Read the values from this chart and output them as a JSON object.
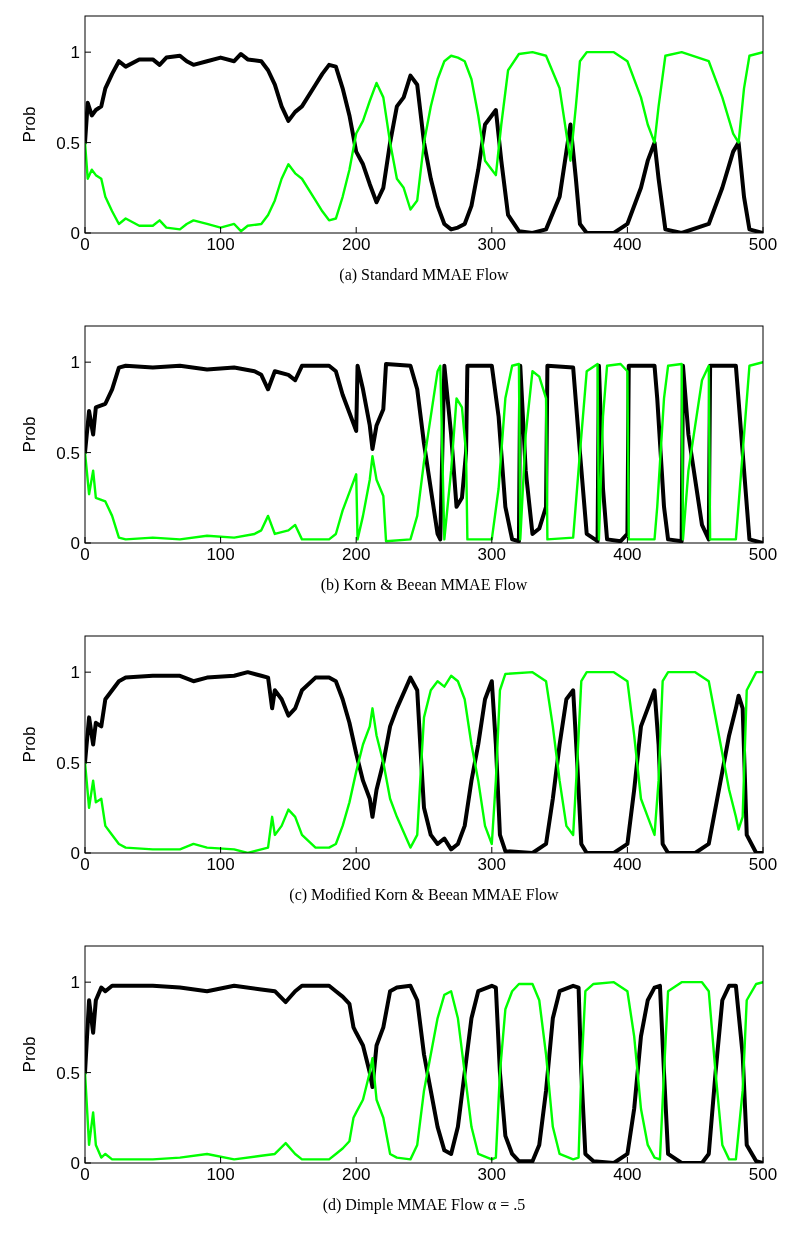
{
  "chart_data": [
    {
      "type": "line",
      "title": "(a) Standard MMAE Flow",
      "ylabel": "Prob",
      "xlim": [
        0,
        500
      ],
      "ylim": [
        0,
        1.2
      ],
      "xticks": [
        0,
        100,
        200,
        300,
        400,
        500
      ],
      "yticks": [
        0,
        0.5,
        1
      ],
      "x": [
        0,
        2,
        5,
        8,
        12,
        15,
        20,
        25,
        30,
        40,
        50,
        55,
        60,
        70,
        75,
        80,
        90,
        100,
        110,
        115,
        120,
        130,
        135,
        140,
        145,
        150,
        155,
        160,
        170,
        175,
        180,
        185,
        190,
        195,
        200,
        205,
        210,
        215,
        220,
        225,
        230,
        235,
        240,
        245,
        250,
        255,
        260,
        265,
        270,
        275,
        280,
        285,
        290,
        295,
        300,
        303,
        307,
        312,
        320,
        330,
        340,
        350,
        355,
        358,
        362,
        365,
        370,
        390,
        400,
        410,
        415,
        420,
        423,
        428,
        440,
        460,
        470,
        478,
        482,
        486,
        490,
        500
      ],
      "series": [
        {
          "color": "#000000",
          "values": [
            0.5,
            0.72,
            0.65,
            0.68,
            0.7,
            0.8,
            0.88,
            0.95,
            0.92,
            0.96,
            0.96,
            0.93,
            0.97,
            0.98,
            0.95,
            0.93,
            0.95,
            0.97,
            0.95,
            0.99,
            0.96,
            0.95,
            0.9,
            0.82,
            0.7,
            0.62,
            0.67,
            0.7,
            0.82,
            0.88,
            0.93,
            0.92,
            0.8,
            0.65,
            0.45,
            0.38,
            0.27,
            0.17,
            0.25,
            0.5,
            0.7,
            0.75,
            0.87,
            0.82,
            0.5,
            0.3,
            0.15,
            0.05,
            0.02,
            0.03,
            0.05,
            0.15,
            0.35,
            0.6,
            0.65,
            0.68,
            0.4,
            0.1,
            0.01,
            0,
            0.02,
            0.2,
            0.45,
            0.6,
            0.3,
            0.05,
            0,
            0,
            0.05,
            0.25,
            0.4,
            0.5,
            0.3,
            0.02,
            0,
            0.05,
            0.25,
            0.45,
            0.5,
            0.2,
            0.02,
            0
          ]
        },
        {
          "color": "#00ff00",
          "values": [
            0.5,
            0.3,
            0.35,
            0.32,
            0.3,
            0.2,
            0.12,
            0.05,
            0.08,
            0.04,
            0.04,
            0.07,
            0.03,
            0.02,
            0.05,
            0.07,
            0.05,
            0.03,
            0.05,
            0.01,
            0.04,
            0.05,
            0.1,
            0.18,
            0.3,
            0.38,
            0.33,
            0.3,
            0.18,
            0.12,
            0.07,
            0.08,
            0.2,
            0.35,
            0.55,
            0.62,
            0.73,
            0.83,
            0.75,
            0.5,
            0.3,
            0.25,
            0.13,
            0.18,
            0.5,
            0.7,
            0.85,
            0.95,
            0.98,
            0.97,
            0.95,
            0.85,
            0.65,
            0.4,
            0.35,
            0.32,
            0.6,
            0.9,
            0.99,
            1,
            0.98,
            0.8,
            0.55,
            0.4,
            0.7,
            0.95,
            1,
            1,
            0.95,
            0.75,
            0.6,
            0.5,
            0.7,
            0.98,
            1,
            0.95,
            0.75,
            0.55,
            0.5,
            0.8,
            0.98,
            1
          ]
        }
      ]
    },
    {
      "type": "line",
      "title": "(b) Korn & Beean MMAE Flow",
      "ylabel": "Prob",
      "xlim": [
        0,
        500
      ],
      "ylim": [
        0,
        1.2
      ],
      "xticks": [
        0,
        100,
        200,
        300,
        400,
        500
      ],
      "yticks": [
        0,
        0.5,
        1
      ],
      "x": [
        0,
        3,
        6,
        8,
        15,
        20,
        25,
        30,
        50,
        70,
        90,
        110,
        125,
        130,
        135,
        140,
        150,
        155,
        160,
        180,
        185,
        190,
        195,
        200,
        201,
        205,
        210,
        212,
        215,
        220,
        222,
        240,
        245,
        250,
        255,
        260,
        262,
        265,
        270,
        274,
        278,
        281,
        282,
        300,
        305,
        310,
        315,
        320,
        321,
        325,
        330,
        335,
        340,
        341,
        360,
        365,
        370,
        378,
        379,
        382,
        385,
        395,
        400,
        401,
        420,
        422,
        427,
        430,
        440,
        441,
        445,
        455,
        460,
        461,
        480,
        485,
        490,
        500
      ],
      "series": [
        {
          "color": "#000000",
          "values": [
            0.5,
            0.73,
            0.6,
            0.75,
            0.77,
            0.85,
            0.97,
            0.98,
            0.97,
            0.98,
            0.96,
            0.97,
            0.95,
            0.93,
            0.85,
            0.95,
            0.93,
            0.9,
            0.98,
            0.98,
            0.95,
            0.82,
            0.72,
            0.62,
            0.98,
            0.85,
            0.65,
            0.52,
            0.65,
            0.74,
            0.99,
            0.98,
            0.85,
            0.55,
            0.3,
            0.05,
            0.02,
            0.98,
            0.6,
            0.2,
            0.25,
            0.5,
            0.98,
            0.98,
            0.7,
            0.2,
            0.02,
            0.01,
            0.98,
            0.4,
            0.05,
            0.08,
            0.2,
            0.98,
            0.97,
            0.5,
            0.05,
            0.01,
            0.98,
            0.3,
            0.02,
            0.01,
            0.05,
            0.98,
            0.98,
            0.8,
            0.2,
            0.02,
            0.01,
            0.98,
            0.6,
            0.1,
            0.02,
            0.98,
            0.98,
            0.5,
            0.02,
            0
          ]
        },
        {
          "color": "#00ff00",
          "values": [
            0.5,
            0.27,
            0.4,
            0.25,
            0.23,
            0.15,
            0.03,
            0.02,
            0.03,
            0.02,
            0.04,
            0.03,
            0.05,
            0.07,
            0.15,
            0.05,
            0.07,
            0.1,
            0.02,
            0.02,
            0.05,
            0.18,
            0.28,
            0.38,
            0.02,
            0.15,
            0.35,
            0.48,
            0.35,
            0.26,
            0.01,
            0.02,
            0.15,
            0.45,
            0.7,
            0.95,
            0.98,
            0.02,
            0.4,
            0.8,
            0.75,
            0.5,
            0.02,
            0.02,
            0.3,
            0.8,
            0.98,
            0.99,
            0.02,
            0.6,
            0.95,
            0.92,
            0.8,
            0.02,
            0.03,
            0.5,
            0.95,
            0.99,
            0.02,
            0.7,
            0.98,
            0.99,
            0.95,
            0.02,
            0.02,
            0.2,
            0.8,
            0.98,
            0.99,
            0.02,
            0.4,
            0.9,
            0.98,
            0.02,
            0.02,
            0.5,
            0.98,
            1
          ]
        }
      ]
    },
    {
      "type": "line",
      "title": "(c) Modified Korn & Beean MMAE Flow",
      "ylabel": "Prob",
      "xlim": [
        0,
        500
      ],
      "ylim": [
        0,
        1.2
      ],
      "xticks": [
        0,
        100,
        200,
        300,
        400,
        500
      ],
      "yticks": [
        0,
        0.5,
        1
      ],
      "x": [
        0,
        3,
        6,
        8,
        12,
        15,
        20,
        25,
        30,
        50,
        70,
        80,
        90,
        110,
        120,
        130,
        135,
        138,
        140,
        145,
        150,
        155,
        160,
        170,
        180,
        185,
        190,
        195,
        200,
        205,
        210,
        212,
        215,
        220,
        225,
        230,
        240,
        245,
        248,
        250,
        255,
        260,
        265,
        270,
        275,
        280,
        285,
        290,
        295,
        300,
        303,
        306,
        310,
        330,
        340,
        345,
        350,
        355,
        360,
        363,
        366,
        370,
        390,
        400,
        405,
        410,
        415,
        420,
        423,
        426,
        430,
        450,
        460,
        470,
        475,
        480,
        482,
        485,
        488,
        495,
        500
      ],
      "series": [
        {
          "color": "#000000",
          "values": [
            0.5,
            0.75,
            0.6,
            0.72,
            0.7,
            0.85,
            0.9,
            0.95,
            0.97,
            0.98,
            0.98,
            0.95,
            0.97,
            0.98,
            1,
            0.98,
            0.97,
            0.8,
            0.9,
            0.85,
            0.76,
            0.8,
            0.9,
            0.97,
            0.97,
            0.95,
            0.85,
            0.72,
            0.55,
            0.4,
            0.3,
            0.2,
            0.35,
            0.5,
            0.7,
            0.8,
            0.97,
            0.9,
            0.5,
            0.25,
            0.1,
            0.05,
            0.08,
            0.02,
            0.05,
            0.15,
            0.4,
            0.6,
            0.85,
            0.95,
            0.6,
            0.1,
            0.01,
            0,
            0.05,
            0.3,
            0.6,
            0.85,
            0.9,
            0.5,
            0.05,
            0,
            0,
            0.05,
            0.35,
            0.7,
            0.8,
            0.9,
            0.6,
            0.05,
            0,
            0,
            0.05,
            0.45,
            0.65,
            0.8,
            0.87,
            0.8,
            0.1,
            0,
            0
          ]
        },
        {
          "color": "#00ff00",
          "values": [
            0.5,
            0.25,
            0.4,
            0.28,
            0.3,
            0.15,
            0.1,
            0.05,
            0.03,
            0.02,
            0.02,
            0.05,
            0.03,
            0.02,
            0,
            0.02,
            0.03,
            0.2,
            0.1,
            0.15,
            0.24,
            0.2,
            0.1,
            0.03,
            0.03,
            0.05,
            0.15,
            0.28,
            0.45,
            0.6,
            0.7,
            0.8,
            0.65,
            0.5,
            0.3,
            0.2,
            0.03,
            0.1,
            0.5,
            0.75,
            0.9,
            0.95,
            0.92,
            0.98,
            0.95,
            0.85,
            0.6,
            0.4,
            0.15,
            0.05,
            0.4,
            0.9,
            0.99,
            1,
            0.95,
            0.7,
            0.4,
            0.15,
            0.1,
            0.5,
            0.95,
            1,
            1,
            0.95,
            0.65,
            0.3,
            0.2,
            0.1,
            0.4,
            0.95,
            1,
            1,
            0.95,
            0.55,
            0.35,
            0.2,
            0.13,
            0.2,
            0.9,
            1,
            1
          ]
        }
      ]
    },
    {
      "type": "line",
      "title": "(d) Dimple MMAE Flow α = .5",
      "ylabel": "Prob",
      "xlim": [
        0,
        500
      ],
      "ylim": [
        0,
        1.2
      ],
      "xticks": [
        0,
        100,
        200,
        300,
        400,
        500
      ],
      "yticks": [
        0,
        0.5,
        1
      ],
      "x": [
        0,
        3,
        6,
        8,
        12,
        15,
        20,
        50,
        70,
        90,
        110,
        130,
        140,
        148,
        155,
        160,
        180,
        185,
        190,
        195,
        198,
        200,
        205,
        210,
        212,
        215,
        220,
        225,
        230,
        240,
        245,
        250,
        255,
        260,
        265,
        270,
        275,
        280,
        285,
        290,
        300,
        303,
        306,
        310,
        315,
        320,
        330,
        335,
        340,
        345,
        350,
        360,
        364,
        366,
        369,
        375,
        390,
        400,
        405,
        410,
        415,
        420,
        424,
        427,
        430,
        440,
        455,
        460,
        465,
        470,
        475,
        480,
        485,
        488,
        495,
        500
      ],
      "series": [
        {
          "color": "#000000",
          "values": [
            0.5,
            0.9,
            0.72,
            0.9,
            0.97,
            0.95,
            0.98,
            0.98,
            0.97,
            0.95,
            0.98,
            0.96,
            0.95,
            0.89,
            0.95,
            0.98,
            0.98,
            0.95,
            0.92,
            0.88,
            0.75,
            0.72,
            0.65,
            0.5,
            0.42,
            0.65,
            0.75,
            0.95,
            0.97,
            0.98,
            0.9,
            0.6,
            0.4,
            0.2,
            0.07,
            0.05,
            0.2,
            0.5,
            0.8,
            0.95,
            0.98,
            0.97,
            0.5,
            0.15,
            0.05,
            0.01,
            0.01,
            0.1,
            0.4,
            0.8,
            0.95,
            0.98,
            0.97,
            0.5,
            0.05,
            0.01,
            0,
            0.05,
            0.3,
            0.7,
            0.9,
            0.97,
            0.98,
            0.5,
            0.05,
            0,
            0,
            0.05,
            0.5,
            0.9,
            0.98,
            0.98,
            0.6,
            0.1,
            0.01,
            0
          ]
        },
        {
          "color": "#00ff00",
          "values": [
            0.5,
            0.1,
            0.28,
            0.1,
            0.03,
            0.05,
            0.02,
            0.02,
            0.03,
            0.05,
            0.02,
            0.04,
            0.05,
            0.11,
            0.05,
            0.02,
            0.02,
            0.05,
            0.08,
            0.12,
            0.25,
            0.28,
            0.35,
            0.5,
            0.58,
            0.35,
            0.25,
            0.05,
            0.03,
            0.02,
            0.1,
            0.4,
            0.6,
            0.8,
            0.93,
            0.95,
            0.8,
            0.5,
            0.2,
            0.05,
            0.02,
            0.03,
            0.5,
            0.85,
            0.95,
            0.99,
            0.99,
            0.9,
            0.6,
            0.2,
            0.05,
            0.02,
            0.03,
            0.5,
            0.95,
            0.99,
            1,
            0.95,
            0.7,
            0.3,
            0.1,
            0.03,
            0.02,
            0.5,
            0.95,
            1,
            1,
            0.95,
            0.5,
            0.1,
            0.02,
            0.02,
            0.4,
            0.9,
            0.99,
            1
          ]
        }
      ]
    }
  ]
}
